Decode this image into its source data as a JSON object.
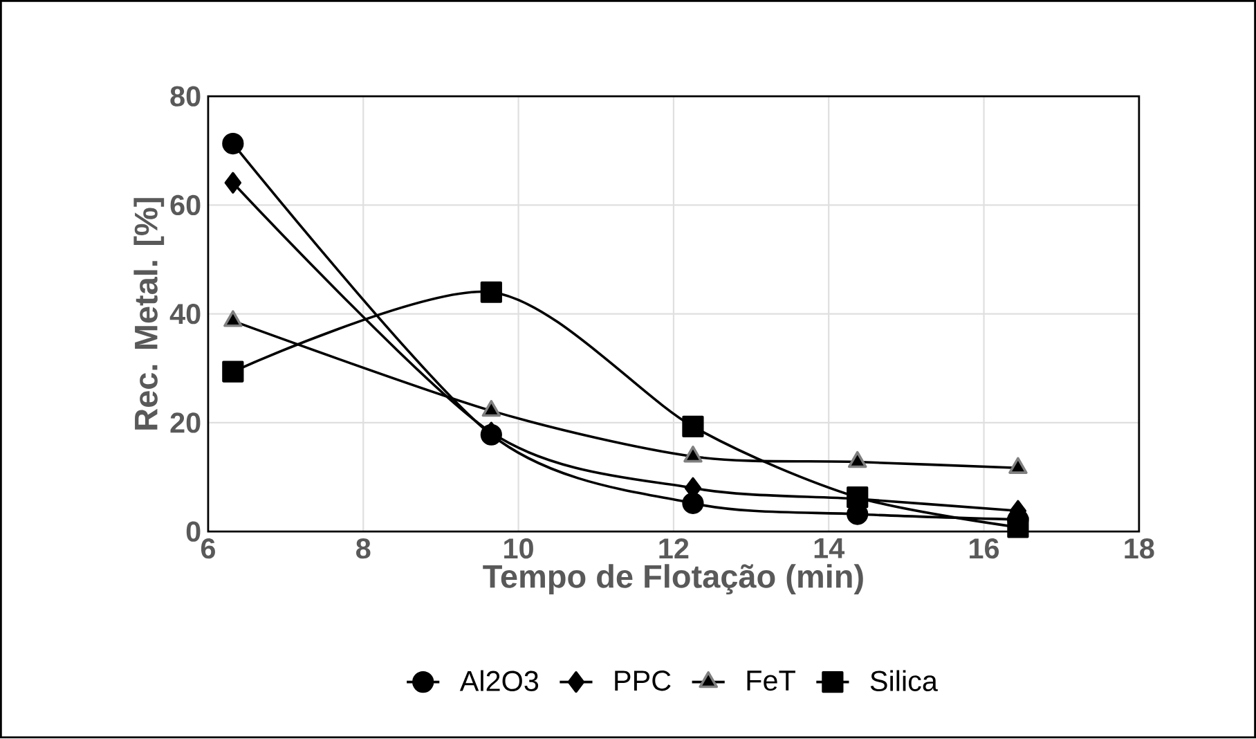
{
  "chart_data": {
    "type": "line",
    "xlabel": "Tempo de Flotação (min)",
    "ylabel": "Rec. Metal. [%]",
    "xlim": [
      6,
      18
    ],
    "xticks": [
      6,
      8,
      10,
      12,
      14,
      16,
      18
    ],
    "ylim": [
      0,
      80
    ],
    "yticks": [
      0,
      20,
      40,
      60,
      80
    ],
    "grid": true,
    "legend": "bottom",
    "series": [
      {
        "name": "Al2O3",
        "color": "#000000",
        "marker": "circle",
        "x": [
          6.32,
          9.65,
          12.25,
          14.37,
          16.44
        ],
        "values": [
          71.3,
          17.8,
          5.2,
          3.2,
          2.2
        ]
      },
      {
        "name": "PPC",
        "color": "#000000",
        "marker": "diamond",
        "x": [
          6.32,
          9.65,
          12.25,
          14.37,
          16.44
        ],
        "values": [
          64.1,
          18.2,
          8.0,
          6.0,
          3.8
        ]
      },
      {
        "name": "FeT",
        "color": "#000000",
        "marker": "triangle",
        "x": [
          6.32,
          9.65,
          12.25,
          14.37,
          16.44
        ],
        "values": [
          38.7,
          22.2,
          13.8,
          12.8,
          11.7
        ]
      },
      {
        "name": "Silica",
        "color": "#000000",
        "marker": "square",
        "x": [
          6.32,
          9.65,
          12.25,
          14.37,
          16.44
        ],
        "values": [
          29.4,
          44.0,
          19.3,
          6.3,
          0.8
        ]
      }
    ]
  }
}
